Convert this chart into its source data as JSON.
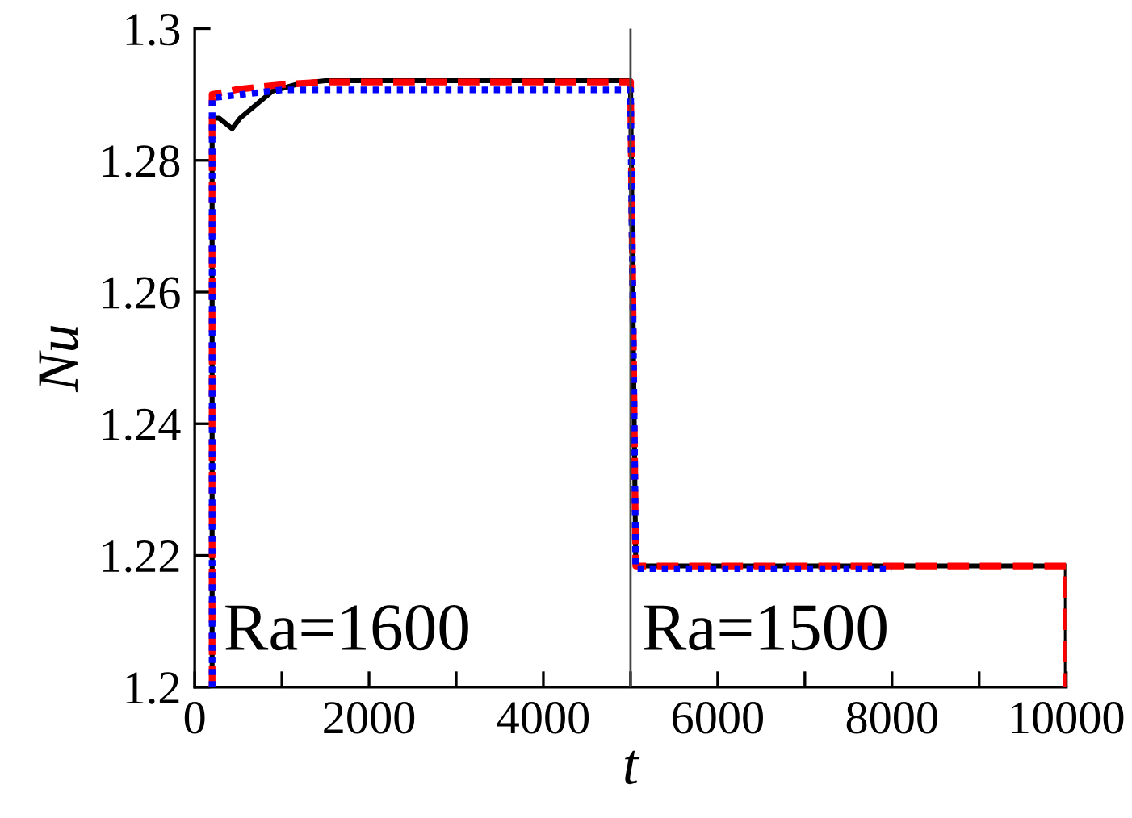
{
  "chart_data": {
    "type": "line",
    "xlabel": "t",
    "ylabel": "Nu",
    "xlim": [
      0,
      10000
    ],
    "ylim": [
      1.2,
      1.3
    ],
    "xticks": [
      0,
      {
        "value": 1000,
        "label": null
      },
      2000,
      {
        "value": 3000,
        "label": null
      },
      4000,
      {
        "value": 5000,
        "label": null
      },
      6000,
      {
        "value": 7000,
        "label": null
      },
      8000,
      {
        "value": 9000,
        "label": null
      },
      10000
    ],
    "yticks": [
      1.2,
      1.22,
      1.24,
      1.26,
      1.28,
      1.3
    ],
    "grid": false,
    "legend": false,
    "marker": "none",
    "series": [
      {
        "color": "#000000",
        "line_style": "solid",
        "x": [
          200,
          200,
          280,
          430,
          520,
          890,
          1210,
          1500,
          5000,
          5060,
          10000,
          10000
        ],
        "values": [
          1.2,
          1.2864,
          1.2864,
          1.2848,
          1.2864,
          1.2905,
          1.2917,
          1.2921,
          1.2921,
          1.2184,
          1.2184,
          1.2
        ]
      },
      {
        "color": "#ff0000",
        "line_style": "dashed",
        "x": [
          200,
          200,
          500,
          1000,
          1500,
          5000,
          5060,
          10000,
          10000
        ],
        "values": [
          1.2,
          1.29,
          1.2908,
          1.2915,
          1.2919,
          1.2919,
          1.2184,
          1.2184,
          1.2
        ]
      },
      {
        "color": "#0000ff",
        "line_style": "dotted",
        "x": [
          200,
          200,
          1000,
          5000,
          5060,
          8000
        ],
        "values": [
          1.2,
          1.2895,
          1.2907,
          1.2907,
          1.218,
          1.218
        ]
      }
    ],
    "ref_lines": [
      {
        "axis": "x",
        "value": 5000,
        "label": null,
        "color": "#444444",
        "line_style": "solid"
      }
    ],
    "annotations": [
      "Ra=1600",
      "Ra=1500"
    ]
  }
}
